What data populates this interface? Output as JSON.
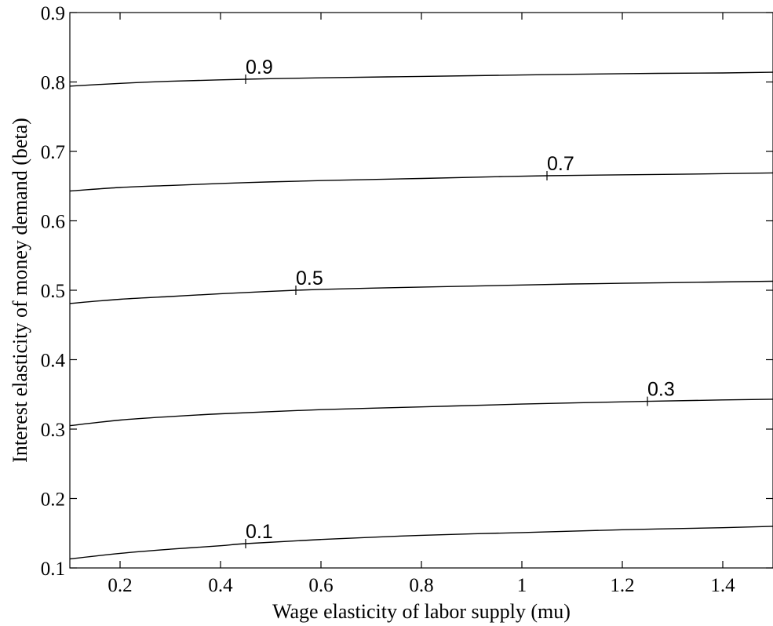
{
  "chart_data": {
    "type": "line",
    "title": "",
    "xlabel": "Wage elasticity of labor supply (mu)",
    "ylabel": "Interest elasticity of money demand (beta)",
    "xlim": [
      0.1,
      1.5
    ],
    "ylim": [
      0.1,
      0.9
    ],
    "xticks": [
      0.2,
      0.4,
      0.6,
      0.8,
      1.0,
      1.2,
      1.4
    ],
    "xtick_labels": [
      "0.2",
      "0.4",
      "0.6",
      "0.8",
      "1",
      "1.2",
      "1.4"
    ],
    "yticks": [
      0.1,
      0.2,
      0.3,
      0.4,
      0.5,
      0.6,
      0.7,
      0.8,
      0.9
    ],
    "ytick_labels": [
      "0.1",
      "0.2",
      "0.3",
      "0.4",
      "0.5",
      "0.6",
      "0.7",
      "0.8",
      "0.9"
    ],
    "grid": false,
    "legend": "none",
    "series": [
      {
        "name": "0.1",
        "label_at": [
          0.45,
          0.135
        ],
        "x": [
          0.1,
          0.2,
          0.3,
          0.4,
          0.45,
          0.6,
          0.8,
          1.0,
          1.2,
          1.4,
          1.5
        ],
        "y": [
          0.113,
          0.121,
          0.127,
          0.132,
          0.135,
          0.141,
          0.147,
          0.151,
          0.155,
          0.158,
          0.16
        ]
      },
      {
        "name": "0.3",
        "label_at": [
          1.25,
          0.34
        ],
        "x": [
          0.1,
          0.2,
          0.3,
          0.4,
          0.6,
          0.8,
          1.0,
          1.25,
          1.4,
          1.5
        ],
        "y": [
          0.305,
          0.313,
          0.318,
          0.322,
          0.328,
          0.332,
          0.336,
          0.34,
          0.342,
          0.343
        ]
      },
      {
        "name": "0.5",
        "label_at": [
          0.55,
          0.5
        ],
        "x": [
          0.1,
          0.2,
          0.3,
          0.4,
          0.55,
          0.7,
          0.9,
          1.1,
          1.3,
          1.5
        ],
        "y": [
          0.481,
          0.487,
          0.491,
          0.495,
          0.5,
          0.503,
          0.506,
          0.509,
          0.511,
          0.513
        ]
      },
      {
        "name": "0.7",
        "label_at": [
          1.05,
          0.665
        ],
        "x": [
          0.1,
          0.2,
          0.3,
          0.45,
          0.6,
          0.8,
          1.05,
          1.3,
          1.5
        ],
        "y": [
          0.643,
          0.648,
          0.651,
          0.655,
          0.658,
          0.661,
          0.665,
          0.667,
          0.669
        ]
      },
      {
        "name": "0.9",
        "label_at": [
          0.45,
          0.804
        ],
        "x": [
          0.1,
          0.2,
          0.3,
          0.45,
          0.6,
          0.8,
          1.0,
          1.2,
          1.4,
          1.5
        ],
        "y": [
          0.794,
          0.798,
          0.801,
          0.804,
          0.806,
          0.808,
          0.81,
          0.812,
          0.813,
          0.814
        ]
      }
    ]
  }
}
